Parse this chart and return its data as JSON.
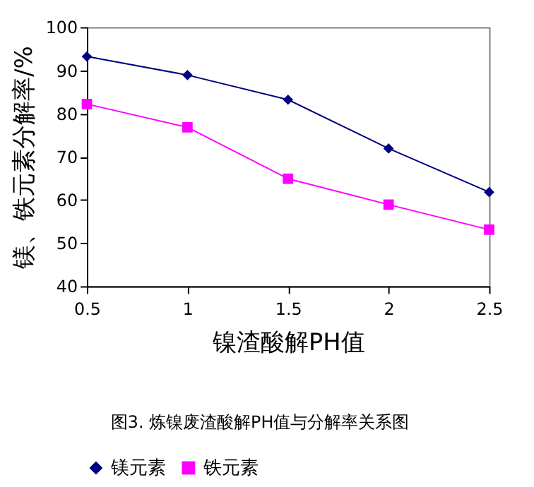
{
  "chart_data": {
    "type": "line",
    "xlabel": "镍渣酸解PH值",
    "ylabel": "镁、铁元素分解率/%",
    "annotations": [
      "图3. 炼镍废渣酸解PH值与分解率关系图"
    ],
    "x": [
      0.5,
      1,
      1.5,
      2,
      2.5
    ],
    "series": [
      {
        "name": "镁元素",
        "color": "#000080",
        "marker": "diamond",
        "values": [
          93.2,
          88.9,
          83.2,
          71.9,
          61.8
        ]
      },
      {
        "name": "铁元素",
        "color": "#ff00ff",
        "marker": "square",
        "values": [
          82.2,
          76.8,
          64.9,
          58.9,
          53.1
        ]
      }
    ],
    "xlim": [
      0.5,
      2.5
    ],
    "xticks": [
      0.5,
      1,
      1.5,
      2,
      2.5
    ],
    "ylim": [
      40,
      100
    ],
    "yticks": [
      40,
      50,
      60,
      70,
      80,
      90,
      100
    ],
    "grid": false,
    "legend": "bottom",
    "line_style": "solid"
  }
}
